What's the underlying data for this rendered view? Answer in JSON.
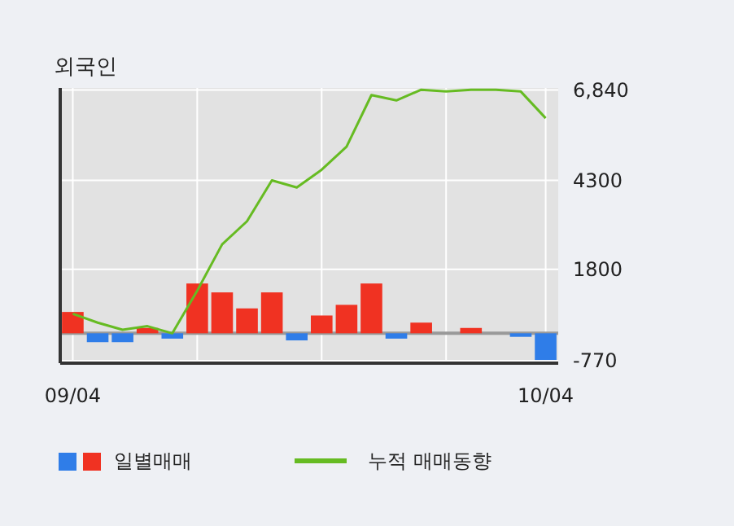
{
  "chart_data": {
    "type": "bar",
    "title": "외국인",
    "categories": [
      "09/04",
      null,
      null,
      null,
      null,
      null,
      null,
      null,
      null,
      null,
      null,
      null,
      null,
      null,
      null,
      null,
      null,
      null,
      null,
      "10/04"
    ],
    "series": [
      {
        "name": "일별매매",
        "colors": [
          "#f03222",
          "#2f7de8",
          "#2f7de8",
          "#f03222",
          "#2f7de8",
          "#f03222",
          "#f03222",
          "#f03222",
          "#f03222",
          "#2f7de8",
          "#f03222",
          "#f03222",
          "#f03222",
          "#2f7de8",
          "#f03222",
          "#f03222",
          "#f03222",
          "#f03222",
          "#2f7de8",
          "#2f7de8"
        ],
        "values": [
          600,
          -250,
          -250,
          150,
          -150,
          1400,
          1150,
          700,
          1150,
          -200,
          500,
          800,
          1400,
          -150,
          300,
          0,
          150,
          0,
          -100,
          -750
        ]
      },
      {
        "name": "누적 매매동향",
        "type": "line",
        "color": "#66bb22",
        "values": [
          550,
          300,
          100,
          200,
          0,
          1200,
          2500,
          3150,
          4300,
          4100,
          4600,
          5250,
          6700,
          6550,
          6850,
          6800,
          6850,
          6850,
          6800,
          6050
        ]
      }
    ],
    "ylim": [
      -840,
      6900
    ],
    "yticks": [
      -770,
      1800,
      4300,
      {
        "value": 6840,
        "label": "6,840"
      }
    ],
    "grid": true,
    "legend": "bottom",
    "marker": "none"
  }
}
